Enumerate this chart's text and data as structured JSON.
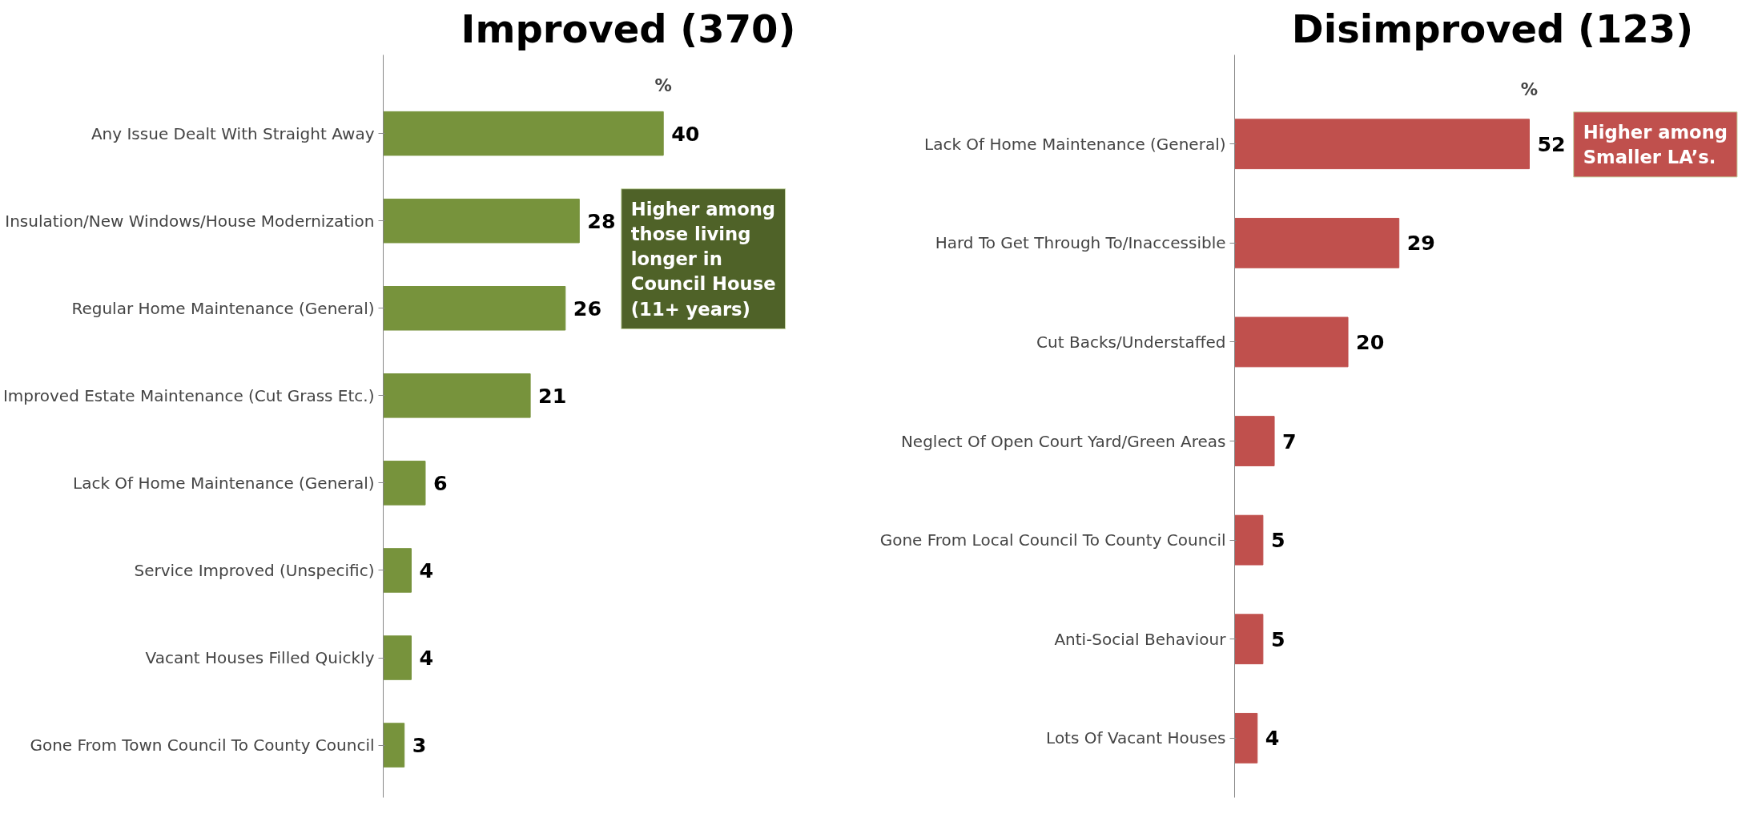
{
  "chart_data": [
    {
      "type": "bar",
      "orientation": "horizontal",
      "title": "Improved (370)",
      "xlabel": "%",
      "color": "#77933c",
      "data_labels": true,
      "categories": [
        "Any Issue Dealt With Straight Away",
        "Insulation/New Windows/House Modernization",
        "Regular Home Maintenance (General)",
        "Improved Estate Maintenance (Cut Grass Etc.)",
        "Lack Of Home Maintenance (General)",
        "Service Improved (Unspecific)",
        "Vacant Houses Filled Quickly",
        "Gone From Town Council To County Council"
      ],
      "values": [
        40,
        28,
        26,
        21,
        6,
        4,
        4,
        3
      ],
      "annotations": [
        {
          "text": "Higher among those living longer in Council House (11+ years)",
          "x": 28,
          "y": "Insulation/New Windows/House Modernization"
        }
      ]
    },
    {
      "type": "bar",
      "orientation": "horizontal",
      "title": "Disimproved (123)",
      "xlabel": "%",
      "color": "#c0504d",
      "data_labels": true,
      "categories": [
        "Lack Of Home Maintenance (General)",
        "Hard To Get Through To/Inaccessible",
        "Cut Backs/Understaffed",
        "Neglect Of Open Court Yard/Green Areas",
        "Gone From Local Council To County Council",
        "Anti-Social Behaviour",
        "Lots Of Vacant Houses"
      ],
      "values": [
        52,
        29,
        20,
        7,
        5,
        5,
        4
      ],
      "annotations": [
        {
          "text": "Higher among Smaller LA’s.",
          "x": 52,
          "y": "Lack Of Home Maintenance (General)"
        }
      ]
    }
  ]
}
